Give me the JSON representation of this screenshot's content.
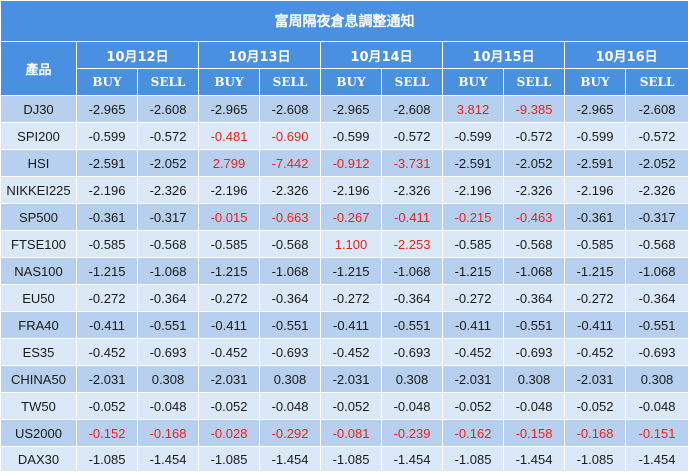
{
  "title": "富周隔夜倉息調整通知",
  "product_header": "產品",
  "dates": [
    "10月12日",
    "10月13日",
    "10月14日",
    "10月15日",
    "10月16日"
  ],
  "buy_label": "BUY",
  "sell_label": "SELL",
  "highlight_color": "#e8231c",
  "rows": [
    {
      "product": "DJ30",
      "values": [
        "-2.965",
        "-2.608",
        "-2.965",
        "-2.608",
        "-2.965",
        "-2.608",
        "3.812",
        "-9.385",
        "-2.965",
        "-2.608"
      ],
      "highlight": [
        false,
        false,
        false,
        false,
        false,
        false,
        true,
        true,
        false,
        false
      ]
    },
    {
      "product": "SPI200",
      "values": [
        "-0.599",
        "-0.572",
        "-0.481",
        "-0.690",
        "-0.599",
        "-0.572",
        "-0.599",
        "-0.572",
        "-0.599",
        "-0.572"
      ],
      "highlight": [
        false,
        false,
        true,
        true,
        false,
        false,
        false,
        false,
        false,
        false
      ]
    },
    {
      "product": "HSI",
      "values": [
        "-2.591",
        "-2.052",
        "2.799",
        "-7.442",
        "-0.912",
        "-3.731",
        "-2.591",
        "-2.052",
        "-2.591",
        "-2.052"
      ],
      "highlight": [
        false,
        false,
        true,
        true,
        true,
        true,
        false,
        false,
        false,
        false
      ]
    },
    {
      "product": "NIKKEI225",
      "values": [
        "-2.196",
        "-2.326",
        "-2.196",
        "-2.326",
        "-2.196",
        "-2.326",
        "-2.196",
        "-2.326",
        "-2.196",
        "-2.326"
      ],
      "highlight": [
        false,
        false,
        false,
        false,
        false,
        false,
        false,
        false,
        false,
        false
      ]
    },
    {
      "product": "SP500",
      "values": [
        "-0.361",
        "-0.317",
        "-0.015",
        "-0.663",
        "-0.267",
        "-0.411",
        "-0.215",
        "-0.463",
        "-0.361",
        "-0.317"
      ],
      "highlight": [
        false,
        false,
        true,
        true,
        true,
        true,
        true,
        true,
        false,
        false
      ]
    },
    {
      "product": "FTSE100",
      "values": [
        "-0.585",
        "-0.568",
        "-0.585",
        "-0.568",
        "1.100",
        "-2.253",
        "-0.585",
        "-0.568",
        "-0.585",
        "-0.568"
      ],
      "highlight": [
        false,
        false,
        false,
        false,
        true,
        true,
        false,
        false,
        false,
        false
      ]
    },
    {
      "product": "NAS100",
      "values": [
        "-1.215",
        "-1.068",
        "-1.215",
        "-1.068",
        "-1.215",
        "-1.068",
        "-1.215",
        "-1.068",
        "-1.215",
        "-1.068"
      ],
      "highlight": [
        false,
        false,
        false,
        false,
        false,
        false,
        false,
        false,
        false,
        false
      ]
    },
    {
      "product": "EU50",
      "values": [
        "-0.272",
        "-0.364",
        "-0.272",
        "-0.364",
        "-0.272",
        "-0.364",
        "-0.272",
        "-0.364",
        "-0.272",
        "-0.364"
      ],
      "highlight": [
        false,
        false,
        false,
        false,
        false,
        false,
        false,
        false,
        false,
        false
      ]
    },
    {
      "product": "FRA40",
      "values": [
        "-0.411",
        "-0.551",
        "-0.411",
        "-0.551",
        "-0.411",
        "-0.551",
        "-0.411",
        "-0.551",
        "-0.411",
        "-0.551"
      ],
      "highlight": [
        false,
        false,
        false,
        false,
        false,
        false,
        false,
        false,
        false,
        false
      ]
    },
    {
      "product": "ES35",
      "values": [
        "-0.452",
        "-0.693",
        "-0.452",
        "-0.693",
        "-0.452",
        "-0.693",
        "-0.452",
        "-0.693",
        "-0.452",
        "-0.693"
      ],
      "highlight": [
        false,
        false,
        false,
        false,
        false,
        false,
        false,
        false,
        false,
        false
      ]
    },
    {
      "product": "CHINA50",
      "values": [
        "-2.031",
        "0.308",
        "-2.031",
        "0.308",
        "-2.031",
        "0.308",
        "-2.031",
        "0.308",
        "-2.031",
        "0.308"
      ],
      "highlight": [
        false,
        false,
        false,
        false,
        false,
        false,
        false,
        false,
        false,
        false
      ]
    },
    {
      "product": "TW50",
      "values": [
        "-0.052",
        "-0.048",
        "-0.052",
        "-0.048",
        "-0.052",
        "-0.048",
        "-0.052",
        "-0.048",
        "-0.052",
        "-0.048"
      ],
      "highlight": [
        false,
        false,
        false,
        false,
        false,
        false,
        false,
        false,
        false,
        false
      ]
    },
    {
      "product": "US2000",
      "values": [
        "-0.152",
        "-0.168",
        "-0.028",
        "-0.292",
        "-0.081",
        "-0.239",
        "-0.162",
        "-0.158",
        "-0.168",
        "-0.151"
      ],
      "highlight": [
        true,
        true,
        true,
        true,
        true,
        true,
        true,
        true,
        true,
        true
      ]
    },
    {
      "product": "DAX30",
      "values": [
        "-1.085",
        "-1.454",
        "-1.085",
        "-1.454",
        "-1.085",
        "-1.454",
        "-1.085",
        "-1.454",
        "-1.085",
        "-1.454"
      ],
      "highlight": [
        false,
        false,
        false,
        false,
        false,
        false,
        false,
        false,
        false,
        false
      ]
    }
  ]
}
